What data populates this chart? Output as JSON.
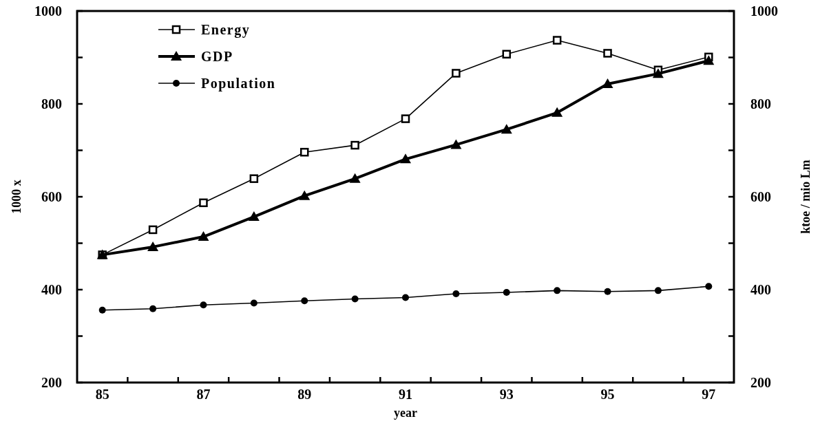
{
  "chart_data": {
    "type": "line",
    "xlabel": "year",
    "ylabel": "1000 x",
    "y2label": "ktoe / mio Lm",
    "categories": [
      "85",
      null,
      "87",
      null,
      "89",
      null,
      "91",
      null,
      "93",
      null,
      "95",
      null,
      "97"
    ],
    "series": [
      {
        "name": "Energy",
        "color": "#000000",
        "marker": "square",
        "values": [
          475,
          529,
          587,
          639,
          696,
          711,
          768,
          866,
          907,
          937,
          909,
          873,
          901
        ]
      },
      {
        "name": "GDP",
        "color": "#000000",
        "marker": "triangle",
        "values": [
          475,
          492,
          514,
          557,
          602,
          639,
          681,
          712,
          745,
          781,
          843,
          865,
          893
        ]
      },
      {
        "name": "Population",
        "color": "#000000",
        "marker": "circle",
        "values": [
          356,
          359,
          367,
          371,
          376,
          380,
          383,
          391,
          394,
          398,
          396,
          398,
          407
        ]
      }
    ],
    "ylim": [
      200,
      1000
    ],
    "yticks": [
      200,
      {
        "value": 300,
        "label": null
      },
      400,
      {
        "value": 500,
        "label": null
      },
      600,
      {
        "value": 700,
        "label": null
      },
      800,
      {
        "value": 900,
        "label": null
      },
      1000
    ],
    "y2lim": [
      200,
      1000
    ],
    "y2ticks": [
      200,
      {
        "value": 300,
        "label": null
      },
      400,
      {
        "value": 500,
        "label": null
      },
      600,
      {
        "value": 700,
        "label": null
      },
      800,
      {
        "value": 900,
        "label": null
      },
      1000
    ],
    "legend": "top left",
    "grid": false,
    "line_style": "solid"
  }
}
